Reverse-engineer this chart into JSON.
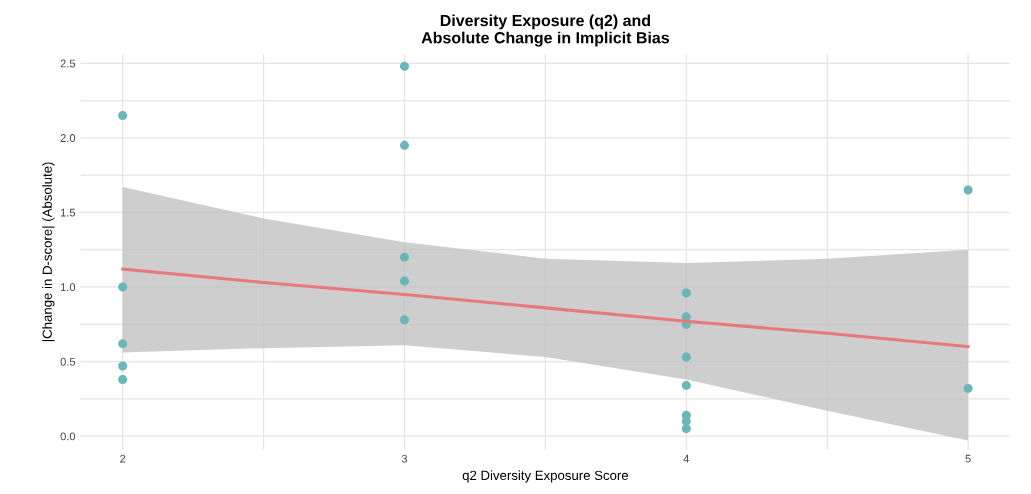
{
  "chart_data": {
    "type": "scatter",
    "title": "Diversity Exposure (q2) and\nAbsolute Change in Implicit Bias",
    "xlabel": "q2 Diversity Exposure Score",
    "ylabel": "|Change in D-score| (Absolute)",
    "series": [
      {
        "color": "#6bb6b8",
        "marker": "circle",
        "x": [
          2,
          2,
          2,
          2,
          2,
          3,
          3,
          3,
          3,
          3,
          4,
          4,
          4,
          4,
          4,
          4,
          4,
          4,
          5,
          5
        ],
        "values": [
          2.15,
          1.0,
          0.62,
          0.47,
          0.38,
          2.48,
          1.95,
          1.2,
          1.04,
          0.78,
          0.96,
          0.8,
          0.75,
          0.53,
          0.34,
          0.14,
          0.1,
          0.05,
          1.65,
          0.32
        ]
      },
      {
        "type": "line",
        "color": "#e8797b",
        "x": [
          2,
          2.5,
          3,
          3.5,
          4,
          4.5,
          5
        ],
        "values": [
          1.12,
          1.03,
          0.95,
          0.86,
          0.77,
          0.69,
          0.6
        ],
        "lower": [
          0.56,
          0.59,
          0.61,
          0.53,
          0.38,
          0.17,
          -0.03
        ],
        "upper": [
          1.67,
          1.46,
          1.3,
          1.19,
          1.16,
          1.19,
          1.25
        ]
      }
    ],
    "xlim": [
      1.85,
      5.15
    ],
    "ylim": [
      -0.09,
      2.56
    ],
    "xticks": [
      2,
      {
        "value": 2.5,
        "label": null
      },
      3,
      {
        "value": 3.5,
        "label": null
      },
      4,
      {
        "value": 4.5,
        "label": null
      },
      5
    ],
    "yticks": [
      {
        "value": 0,
        "label": "0.0"
      },
      {
        "value": 0.25,
        "label": null
      },
      {
        "value": 0.5,
        "label": "0.5"
      },
      {
        "value": 0.75,
        "label": null
      },
      {
        "value": 1,
        "label": "1.0"
      },
      {
        "value": 1.25,
        "label": null
      },
      {
        "value": 1.5,
        "label": "1.5"
      },
      {
        "value": 1.75,
        "label": null
      },
      {
        "value": 2,
        "label": "2.0"
      },
      {
        "value": 2.25,
        "label": null
      },
      {
        "value": 2.5,
        "label": "2.5"
      }
    ],
    "grid": true,
    "line_style": "solid"
  }
}
